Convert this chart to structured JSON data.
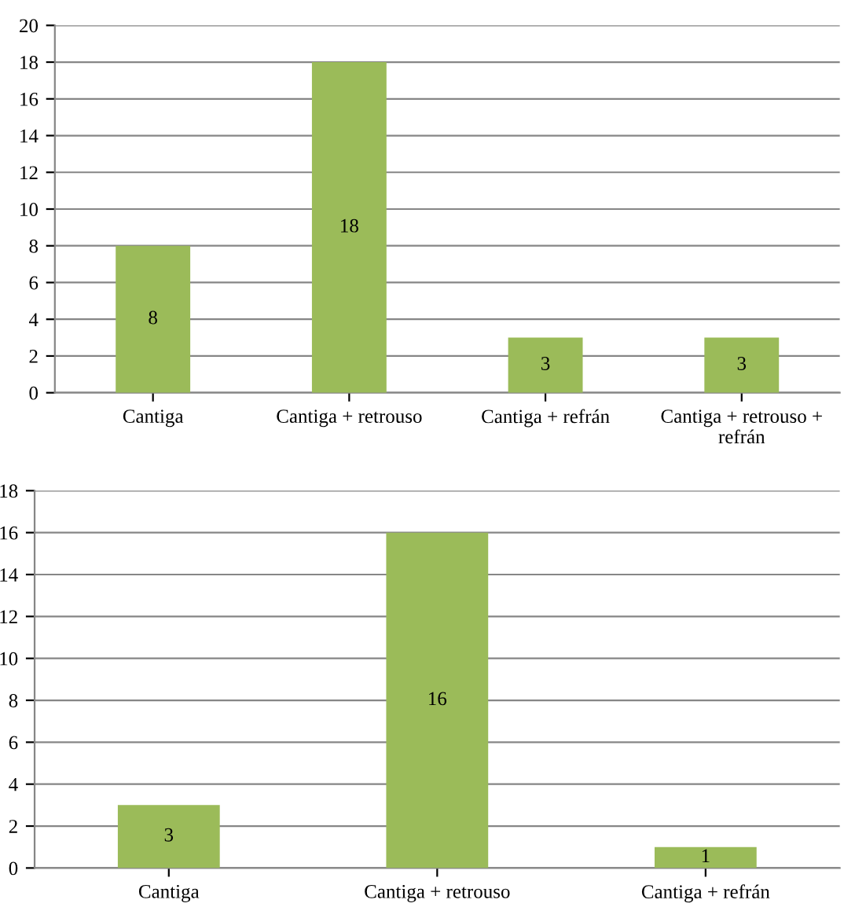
{
  "chart_data": [
    {
      "type": "bar",
      "categories": [
        "Cantiga",
        "Cantiga + retrouso",
        "Cantiga + refrán",
        "Cantiga + retrouso + refrán"
      ],
      "values": [
        8,
        18,
        3,
        3
      ],
      "color": "#9bbb59",
      "ylim": [
        0,
        20
      ],
      "yticks": [
        0,
        2,
        4,
        6,
        8,
        10,
        12,
        14,
        16,
        18,
        20
      ],
      "grid": "y",
      "data_labels": true
    },
    {
      "type": "bar",
      "categories": [
        "Cantiga",
        "Cantiga + retrouso",
        "Cantiga + refrán"
      ],
      "values": [
        3,
        16,
        1
      ],
      "color": "#9bbb59",
      "ylim": [
        0,
        18
      ],
      "yticks": [
        0,
        2,
        4,
        6,
        8,
        10,
        12,
        14,
        16,
        18
      ],
      "grid": "y",
      "data_labels": true
    }
  ]
}
